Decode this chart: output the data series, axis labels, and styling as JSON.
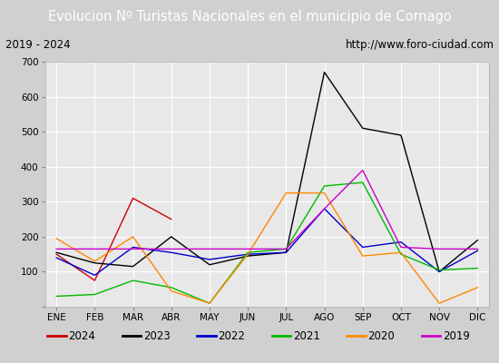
{
  "title": "Evolucion Nº Turistas Nacionales en el municipio de Cornago",
  "subtitle_left": "2019 - 2024",
  "subtitle_right": "http://www.foro-ciudad.com",
  "months": [
    "ENE",
    "FEB",
    "MAR",
    "ABR",
    "MAY",
    "JUN",
    "JUL",
    "AGO",
    "SEP",
    "OCT",
    "NOV",
    "DIC"
  ],
  "series": {
    "2024": [
      150,
      75,
      310,
      250,
      null,
      null,
      null,
      null,
      null,
      null,
      null,
      null
    ],
    "2023": [
      155,
      125,
      115,
      200,
      120,
      145,
      155,
      670,
      510,
      490,
      100,
      190
    ],
    "2022": [
      140,
      90,
      170,
      155,
      135,
      150,
      155,
      280,
      170,
      185,
      100,
      160
    ],
    "2021": [
      30,
      35,
      75,
      55,
      10,
      155,
      165,
      345,
      355,
      150,
      105,
      110
    ],
    "2020": [
      195,
      130,
      200,
      45,
      10,
      150,
      325,
      325,
      145,
      155,
      10,
      55
    ],
    "2019": [
      165,
      165,
      165,
      165,
      165,
      165,
      165,
      280,
      390,
      170,
      165,
      165
    ]
  },
  "colors": {
    "2024": "#cc0000",
    "2023": "#000000",
    "2022": "#0000cc",
    "2021": "#00bb00",
    "2020": "#ff8800",
    "2019": "#cc00cc"
  },
  "ylim": [
    0,
    700
  ],
  "yticks": [
    0,
    100,
    200,
    300,
    400,
    500,
    600,
    700
  ],
  "title_bg": "#4f7fc0",
  "title_color": "#ffffff",
  "plot_bg": "#e8e8e8",
  "grid_color": "#ffffff",
  "legend_order": [
    "2024",
    "2023",
    "2022",
    "2021",
    "2020",
    "2019"
  ]
}
